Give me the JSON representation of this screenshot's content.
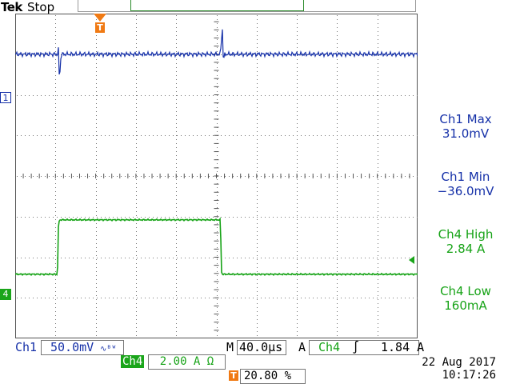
{
  "header": {
    "brand": "Tek",
    "status": "Stop"
  },
  "markers": {
    "ch1_marker": "1",
    "ch4_marker": "4",
    "trigger_marker": "T"
  },
  "readouts": [
    {
      "label": "Ch1 Max",
      "value": "31.0mV",
      "channel": "ch1"
    },
    {
      "label": "Ch1 Min",
      "value": "−36.0mV",
      "channel": "ch1"
    },
    {
      "label": "Ch4 High",
      "value": "2.84 A",
      "channel": "ch4"
    },
    {
      "label": "Ch4 Low",
      "value": "160mA",
      "channel": "ch4"
    }
  ],
  "footer": {
    "ch1_label": "Ch1",
    "ch1_scale": "50.0mV",
    "ch1_coupling": "∿ᴮᵂ",
    "timebase_prefix": "M",
    "timebase": "40.0µs",
    "trigger_prefix": "A",
    "trigger_source": "Ch4",
    "trigger_slope": "∫",
    "trigger_level": "1.84 A",
    "ch4_label": "Ch4",
    "ch4_scale": "2.00 A Ω",
    "trigger_position": "20.80 %",
    "date": "22 Aug 2017",
    "time": "10:17:26"
  },
  "colors": {
    "ch1": "#1530a8",
    "ch4": "#17a317",
    "trigger": "#f07a14",
    "grid": "#555555"
  },
  "chart_data": {
    "type": "line",
    "time_unit": "µs",
    "time_per_div": 40.0,
    "divisions_x": 10,
    "divisions_y": 8,
    "series": [
      {
        "name": "Ch1",
        "unit": "mV",
        "volts_per_div": 50.0,
        "offset_div": 3,
        "points": [
          [
            0,
            0
          ],
          [
            42,
            0
          ],
          [
            43,
            6
          ],
          [
            44,
            -36
          ],
          [
            45,
            -8
          ],
          [
            46,
            0
          ],
          [
            204,
            0
          ],
          [
            205,
            18
          ],
          [
            206,
            31
          ],
          [
            207,
            -12
          ],
          [
            208,
            0
          ],
          [
            400,
            0
          ]
        ]
      },
      {
        "name": "Ch4",
        "unit": "A",
        "volts_per_div": 2.0,
        "offset_div": -2.5,
        "points": [
          [
            0,
            0.16
          ],
          [
            42,
            0.16
          ],
          [
            43,
            2.6
          ],
          [
            44,
            2.84
          ],
          [
            204,
            2.84
          ],
          [
            205,
            0.3
          ],
          [
            206,
            0.16
          ],
          [
            400,
            0.16
          ]
        ]
      }
    ]
  }
}
